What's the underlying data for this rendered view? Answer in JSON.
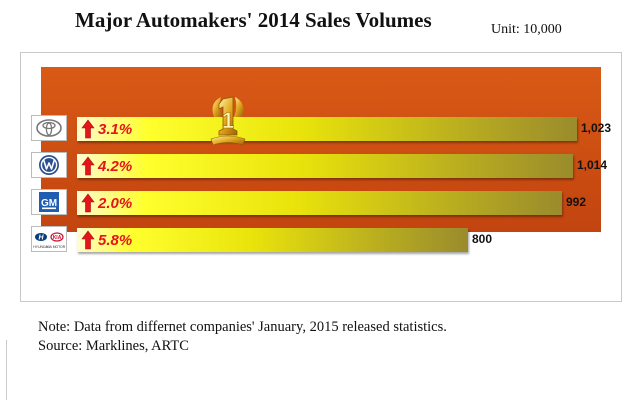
{
  "title": "Major Automakers' 2014 Sales Volumes",
  "unit": "Unit: 10,000",
  "notes": {
    "line1": "Note: Data from differnet companies' January, 2015 released statistics.",
    "line2": "Source: Marklines, ARTC"
  },
  "colors": {
    "growth_text": "#e3151a",
    "bar_start": "#ffff2e",
    "bar_end": "#9a8b2c",
    "band": "#d95a16"
  },
  "chart_data": {
    "type": "bar",
    "orientation": "horizontal",
    "title": "Major Automakers' 2014 Sales Volumes",
    "unit": "Unit: 10,000",
    "categories": [
      "toyota-logo",
      "volkswagen-logo",
      "gm-logo",
      "hyundai-kia-logo"
    ],
    "values": [
      1023,
      1014,
      992,
      800
    ],
    "value_labels": [
      "1,023",
      "1,014",
      "992",
      "800"
    ],
    "growth_labels": [
      "3.1%",
      "4.2%",
      "2.0%",
      "5.8%"
    ],
    "growth_direction": [
      "up",
      "up",
      "up",
      "up"
    ],
    "logos": [
      {
        "icon": "toyota-logo-icon"
      },
      {
        "icon": "volkswagen-logo-icon"
      },
      {
        "icon": "gm-logo-icon",
        "text": "GM"
      },
      {
        "icon": "hyundai-kia-logo-icon",
        "text": [
          "HYUNDAI",
          "KIA MOTORS"
        ]
      }
    ],
    "annotation": {
      "icon": "first-place-trophy-icon",
      "text": "1",
      "row": 0
    }
  }
}
